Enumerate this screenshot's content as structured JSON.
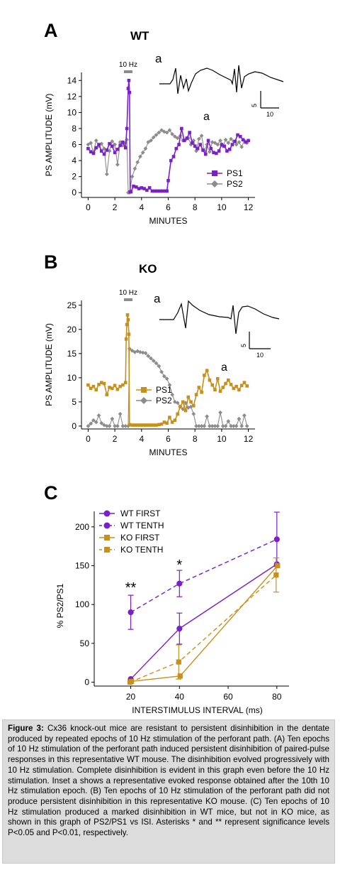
{
  "panels": {
    "A": {
      "letter": "A",
      "title": "WT",
      "stim_label": "10 Hz",
      "inset_letter": "a",
      "trace_letter": "a",
      "scale_v": "5",
      "scale_t": "10"
    },
    "B": {
      "letter": "B",
      "title": "KO",
      "stim_label": "10 Hz",
      "inset_letter": "a",
      "trace_letter": "a",
      "scale_v": "5",
      "scale_t": "10"
    },
    "C": {
      "letter": "C"
    }
  },
  "chart_data": [
    {
      "type": "scatter",
      "panel": "A",
      "title": "WT",
      "xlabel": "MINUTES",
      "ylabel": "PS AMPLITUDE (mV)",
      "xlim": [
        -0.5,
        12.5
      ],
      "ylim": [
        -0.6,
        15
      ],
      "xticks": [
        0,
        2,
        4,
        6,
        8,
        10,
        12
      ],
      "yticks": [
        0,
        2,
        4,
        6,
        8,
        10,
        12,
        14
      ],
      "legend": "bottom-right",
      "series": [
        {
          "name": "PS1",
          "color": "#7a1fc9",
          "marker": "square",
          "x": [
            0,
            0.2,
            0.4,
            0.6,
            0.8,
            1.0,
            1.2,
            1.4,
            1.6,
            1.8,
            2.0,
            2.2,
            2.4,
            2.6,
            2.8,
            2.9,
            3.0,
            3.05,
            3.1,
            3.15,
            3.2,
            3.4,
            3.6,
            3.8,
            4.0,
            4.2,
            4.4,
            4.6,
            4.8,
            5.0,
            5.2,
            5.4,
            5.6,
            5.8,
            5.9,
            6.0,
            6.2,
            6.4,
            6.6,
            6.8,
            7.0,
            7.2,
            7.4,
            7.6,
            7.8,
            8.0,
            8.2,
            8.4,
            8.6,
            8.8,
            9.0,
            9.2,
            9.4,
            9.6,
            9.8,
            10.0,
            10.2,
            10.4,
            10.6,
            10.8,
            11.0,
            11.2,
            11.4,
            11.6,
            11.8,
            12.0
          ],
          "y": [
            5.5,
            5.1,
            4.9,
            5.6,
            6.0,
            5.2,
            4.8,
            5.3,
            6.1,
            5.8,
            5.0,
            5.4,
            5.9,
            6.3,
            5.6,
            8.0,
            13.0,
            14.0,
            12.5,
            0.1,
            0.1,
            0.8,
            0.7,
            0.5,
            0.6,
            0.5,
            0.3,
            0.6,
            0.2,
            0.2,
            0.2,
            0.2,
            0.2,
            0.2,
            0.2,
            1.5,
            4.0,
            4.5,
            5.5,
            6.0,
            8.0,
            6.5,
            6.8,
            7.5,
            6.2,
            5.8,
            5.5,
            6.0,
            5.3,
            4.8,
            6.5,
            5.5,
            5.0,
            4.9,
            5.2,
            6.0,
            5.8,
            5.2,
            5.4,
            6.0,
            6.4,
            7.2,
            7.0,
            6.6,
            6.3,
            6.5
          ]
        },
        {
          "name": "PS2",
          "color": "#8c8c8c",
          "marker": "diamond",
          "x": [
            0,
            0.2,
            0.4,
            0.6,
            0.8,
            1.0,
            1.2,
            1.4,
            1.6,
            1.8,
            2.0,
            2.2,
            2.4,
            2.6,
            2.8,
            2.9,
            3.0,
            3.1,
            3.3,
            3.5,
            3.7,
            3.9,
            4.1,
            4.3,
            4.5,
            4.7,
            4.9,
            5.1,
            5.3,
            5.5,
            5.7,
            5.9,
            6.1,
            6.3,
            6.5,
            6.7,
            6.9,
            7.1,
            7.3,
            7.5,
            7.7,
            7.9,
            8.1,
            8.3,
            8.5,
            8.7,
            8.9,
            9.1,
            9.3,
            9.5,
            9.7,
            9.9,
            10.1,
            10.3,
            10.5,
            10.7,
            10.9,
            11.1,
            11.3,
            11.5,
            11.7,
            11.9
          ],
          "y": [
            6.0,
            6.2,
            5.0,
            6.5,
            5.8,
            6.1,
            5.5,
            2.3,
            5.2,
            6.4,
            6.0,
            3.5,
            6.3,
            5.9,
            6.2,
            6.6,
            0.0,
            0.0,
            2.0,
            3.0,
            3.8,
            4.5,
            5.0,
            5.5,
            6.3,
            6.5,
            6.9,
            7.2,
            7.5,
            7.8,
            7.6,
            7.5,
            7.8,
            7.3,
            7.0,
            6.8,
            7.1,
            6.5,
            6.6,
            6.8,
            6.0,
            6.5,
            5.2,
            6.7,
            7.1,
            5.2,
            6.0,
            5.1,
            6.3,
            6.2,
            6.0,
            6.5,
            5.8,
            6.6,
            6.2,
            6.7,
            6.4,
            6.0,
            6.3,
            5.7,
            6.5,
            6.2
          ]
        }
      ]
    },
    {
      "type": "scatter",
      "panel": "B",
      "title": "KO",
      "xlabel": "MINUTES",
      "ylabel": "PS AMPLITUDE (mV)",
      "xlim": [
        -0.5,
        12.5
      ],
      "ylim": [
        -0.6,
        26
      ],
      "xticks": [
        0,
        2,
        4,
        6,
        8,
        10,
        12
      ],
      "yticks": [
        0,
        5,
        10,
        15,
        20,
        25
      ],
      "legend": "center-left",
      "series": [
        {
          "name": "PS1",
          "color": "#c8901a",
          "marker": "square",
          "x": [
            0,
            0.2,
            0.4,
            0.6,
            0.8,
            1.0,
            1.2,
            1.4,
            1.6,
            1.8,
            2.0,
            2.2,
            2.4,
            2.6,
            2.8,
            2.85,
            2.9,
            2.95,
            3.0,
            3.05,
            3.1,
            3.3,
            3.5,
            3.7,
            3.9,
            4.1,
            4.3,
            4.5,
            4.7,
            4.9,
            5.1,
            5.3,
            5.5,
            5.7,
            5.9,
            6.1,
            6.3,
            6.5,
            6.7,
            6.9,
            7.1,
            7.3,
            7.5,
            7.7,
            7.9,
            8.1,
            8.3,
            8.5,
            8.7,
            8.9,
            9.1,
            9.3,
            9.5,
            9.7,
            9.9,
            10.1,
            10.3,
            10.5,
            10.7,
            10.9,
            11.1,
            11.3,
            11.5,
            11.7,
            11.9
          ],
          "y": [
            8.5,
            7.8,
            8.2,
            7.5,
            8.6,
            9.0,
            8.8,
            6.5,
            8.0,
            7.8,
            8.4,
            7.6,
            8.2,
            8.5,
            9.0,
            18,
            21,
            23,
            22,
            19,
            0.3,
            0.2,
            0.2,
            0.2,
            0.2,
            0.2,
            0.2,
            0.2,
            0.2,
            0.2,
            0.2,
            0.3,
            0.4,
            0.8,
            0.6,
            1.8,
            0.8,
            1.2,
            2.5,
            4.0,
            5.0,
            3.2,
            6.0,
            5.0,
            4.2,
            6.5,
            8.0,
            7.0,
            10.5,
            11.5,
            9.5,
            8.5,
            7.5,
            9.8,
            7.2,
            8.0,
            8.8,
            9.5,
            8.6,
            7.8,
            8.2,
            7.5,
            8.4,
            9.0,
            8.3
          ]
        },
        {
          "name": "PS2",
          "color": "#8c8c8c",
          "marker": "diamond",
          "x": [
            0,
            0.2,
            0.4,
            0.6,
            0.8,
            1.0,
            1.2,
            1.4,
            1.6,
            1.8,
            2.0,
            2.2,
            2.4,
            2.6,
            2.8,
            3.0,
            3.1,
            3.3,
            3.5,
            3.7,
            3.9,
            4.1,
            4.3,
            4.5,
            4.7,
            4.9,
            5.1,
            5.3,
            5.5,
            5.7,
            5.9,
            6.1,
            6.3,
            6.5,
            6.7,
            6.9,
            7.1,
            7.3,
            7.5,
            7.7,
            7.9,
            8.1,
            8.3,
            8.5,
            8.7,
            8.9,
            9.1,
            9.3,
            9.5,
            9.7,
            9.9,
            10.1,
            10.3,
            10.5,
            10.7,
            10.9,
            11.1,
            11.3,
            11.5,
            11.7,
            11.9
          ],
          "y": [
            0.0,
            0.5,
            1.2,
            0.8,
            2.2,
            0.6,
            0.2,
            0.0,
            0.0,
            1.5,
            0.0,
            0.0,
            2.5,
            0.0,
            0.0,
            0.0,
            16.0,
            15.6,
            15.3,
            15.5,
            15.3,
            15.2,
            15.1,
            14.5,
            14.0,
            13.5,
            13.0,
            12.4,
            11.2,
            10.3,
            9.8,
            8.5,
            6.5,
            5.0,
            4.8,
            4.0,
            3.5,
            4.8,
            3.8,
            4.0,
            2.5,
            0.0,
            0.0,
            0.0,
            0.0,
            2.0,
            0.0,
            0.0,
            0.0,
            0.0,
            2.8,
            0.0,
            0.0,
            1.0,
            0.0,
            0.0,
            0.0,
            1.5,
            0.0,
            2.2,
            0.0
          ]
        }
      ]
    },
    {
      "type": "line",
      "panel": "C",
      "xlabel": "INTERSTIMULUS INTERVAL (ms)",
      "ylabel": "% PS2/PS1",
      "xlim": [
        5,
        85
      ],
      "ylim": [
        -5,
        220
      ],
      "xticks": [
        20,
        40,
        60,
        80
      ],
      "yticks": [
        0,
        50,
        100,
        150,
        200
      ],
      "legend": "top-left",
      "significance": [
        {
          "x": 20,
          "label": "**"
        },
        {
          "x": 40,
          "label": "*"
        }
      ],
      "series": [
        {
          "name": "WT FIRST",
          "color": "#7a1fc9",
          "dash": "solid",
          "marker": "circle",
          "x": [
            20,
            40,
            80
          ],
          "y": [
            4,
            69,
            152
          ],
          "err": [
            0,
            20,
            0
          ]
        },
        {
          "name": "WT TENTH",
          "color": "#7a1fc9",
          "dash": "dashed",
          "marker": "circle",
          "x": [
            20,
            40,
            80
          ],
          "y": [
            90,
            127,
            184
          ],
          "err": [
            22,
            17,
            35
          ]
        },
        {
          "name": "KO FIRST",
          "color": "#c8901a",
          "dash": "solid",
          "marker": "square",
          "x": [
            20,
            40,
            80
          ],
          "y": [
            1,
            8,
            150
          ],
          "err": [
            0,
            0,
            0
          ]
        },
        {
          "name": "KO TENTH",
          "color": "#c8901a",
          "dash": "dashed",
          "marker": "square",
          "x": [
            20,
            40,
            80
          ],
          "y": [
            0,
            26,
            138
          ],
          "err": [
            0,
            22,
            22
          ]
        }
      ]
    }
  ],
  "caption": {
    "label": "Figure 3:",
    "text": "Cx36 knock-out mice are resistant to persistent disinhibition in the dentate produced by repeated epochs of 10 Hz stimulation of the perforant path. (A) Ten epochs of 10 Hz stimulation of the perforant path induced persistent disinhibition of paired-pulse responses in this representative WT mouse. The disinhibition evolved progressively with 10 Hz stimulation. Complete disinhibition is evident in this graph even before the 10 Hz stimulation. Inset a shows a representative evoked response obtained after the 10th 10 Hz stimulation epoch. (B) Ten epochs of 10 Hz stimulation of the perforant path did not produce persistent disinhibition in this representative KO mouse. (C) Ten epochs of 10 Hz stimulation produced a marked disinhibition in WT mice, but not in KO mice, as shown in this graph of PS2/PS1 vs ISI. Asterisks * and ** represent significance levels P<0.05 and P<0.01, respectively."
  }
}
